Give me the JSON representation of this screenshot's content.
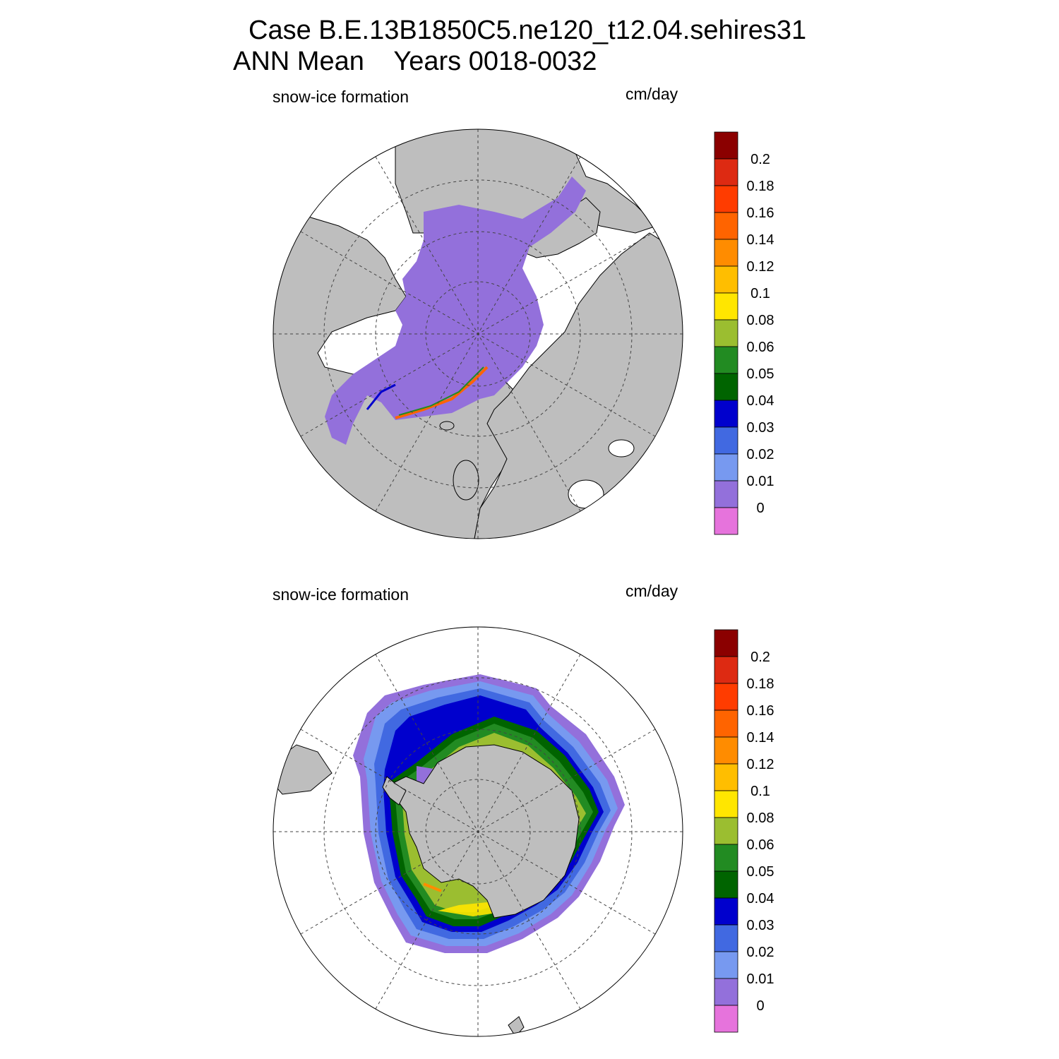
{
  "title": {
    "line1": "Case B.E.13B1850C5.ne120_t12.04.sehires31",
    "line2": "ANN Mean    Years 0018-0032"
  },
  "panels": [
    {
      "hemisphere": "north",
      "variable_label": "snow-ice formation",
      "units_label": "cm/day"
    },
    {
      "hemisphere": "south",
      "variable_label": "snow-ice formation",
      "units_label": "cm/day"
    }
  ],
  "colorbar": {
    "labels": [
      "0.2",
      "0.18",
      "0.16",
      "0.14",
      "0.12",
      "0.1",
      "0.08",
      "0.06",
      "0.05",
      "0.04",
      "0.03",
      "0.02",
      "0.01",
      "0"
    ],
    "colors": [
      "#8b0000",
      "#dd2a12",
      "#ff3c00",
      "#ff6400",
      "#ff8c00",
      "#ffbe00",
      "#ffe600",
      "#9bbe30",
      "#228b22",
      "#006400",
      "#0000cd",
      "#4169e1",
      "#7799f0",
      "#9370db",
      "#e673dc"
    ]
  },
  "colors": {
    "land": "#bebebe",
    "ocean": "#ffffff",
    "grid": "#444444"
  }
}
